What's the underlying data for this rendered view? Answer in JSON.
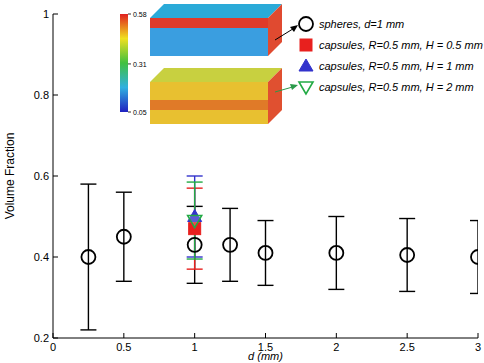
{
  "chart_data": {
    "type": "scatter",
    "x_label": "d (mm)",
    "y_label": "Volume Fraction",
    "xlim": [
      0,
      3
    ],
    "xticks": [
      0,
      0.5,
      1,
      1.5,
      2,
      2.5,
      3
    ],
    "ylim": [
      0.2,
      1
    ],
    "yticks": [
      0.2,
      0.4,
      0.6,
      0.8,
      1
    ],
    "legend": "top-right",
    "series": [
      {
        "name": "spheres, d=1 mm",
        "color": "#000000",
        "marker": "circle",
        "x": [
          0.25,
          0.5,
          1,
          1.25,
          1.5,
          2,
          2.5,
          3
        ],
        "values": [
          0.4,
          0.45,
          0.43,
          0.43,
          0.41,
          0.41,
          0.405,
          0.4
        ],
        "errors": [
          0.18,
          0.11,
          0.095,
          0.09,
          0.08,
          0.09,
          0.09,
          0.09
        ]
      },
      {
        "name": "capsules, R=0.5 mm, H = 0.5 mm",
        "color": "#e8201e",
        "marker": "square",
        "x": [
          1
        ],
        "values": [
          0.47
        ],
        "errors": [
          0.1
        ]
      },
      {
        "name": "capsules, R=0.5 mm, H = 1 mm",
        "color": "#3333cc",
        "marker": "triangle",
        "x": [
          1
        ],
        "values": [
          0.5
        ],
        "errors": [
          0.1
        ]
      },
      {
        "name": "capsules, R=0.5 mm, H = 2 mm",
        "color": "#22aa44",
        "marker": "triangle-down",
        "x": [
          1
        ],
        "values": [
          0.49
        ],
        "errors": [
          0.095
        ]
      }
    ],
    "colorbar": {
      "range": [
        0.05,
        0.58
      ],
      "ticks": [
        0.05,
        0.31,
        0.58
      ]
    }
  }
}
